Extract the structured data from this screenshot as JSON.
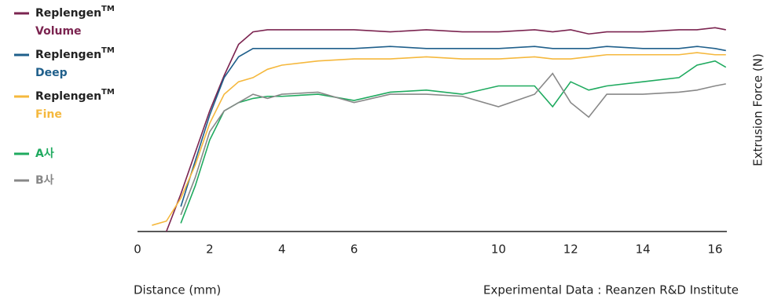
{
  "chart_data": {
    "type": "line",
    "brand": "Replengen",
    "brand_mark": "TM",
    "xlabel": "Distance (mm)",
    "ylabel": "Extrusion Force (N)",
    "note": "Experimental Data : Reanzen R&D Institute",
    "x": [
      0.4,
      0.8,
      1.2,
      1.6,
      2,
      2.4,
      2.8,
      3.2,
      3.6,
      4,
      5,
      6,
      7,
      8,
      9,
      10,
      11,
      11.5,
      12,
      12.5,
      13,
      14,
      15,
      15.5,
      16,
      16.3
    ],
    "xlim": [
      0,
      16.5
    ],
    "xticks": [
      0,
      2,
      4,
      6,
      10,
      12,
      14,
      16
    ],
    "ylim": [
      0,
      100
    ],
    "series": [
      {
        "name": "Volume",
        "branded": true,
        "color": "#7b2450",
        "values": [
          null,
          0,
          18,
          38,
          58,
          75,
          90,
          96,
          97,
          97,
          97,
          97,
          96,
          97,
          96,
          96,
          97,
          96,
          97,
          95,
          96,
          96,
          97,
          97,
          98,
          97
        ]
      },
      {
        "name": "Deep",
        "branded": true,
        "color": "#1f5f8b",
        "values": [
          null,
          null,
          12,
          34,
          56,
          74,
          84,
          88,
          88,
          88,
          88,
          88,
          89,
          88,
          88,
          88,
          89,
          88,
          88,
          88,
          89,
          88,
          88,
          89,
          88,
          87
        ]
      },
      {
        "name": "Fine",
        "branded": true,
        "color": "#f5b83d",
        "values": [
          3,
          5,
          16,
          32,
          52,
          66,
          72,
          74,
          78,
          80,
          82,
          83,
          83,
          84,
          83,
          83,
          84,
          83,
          83,
          84,
          85,
          85,
          85,
          86,
          85,
          85
        ]
      },
      {
        "name": "A사",
        "branded": false,
        "color": "#1faa5f",
        "values": [
          null,
          null,
          4,
          22,
          44,
          58,
          62,
          64,
          65,
          65,
          66,
          63,
          67,
          68,
          66,
          70,
          70,
          60,
          72,
          68,
          70,
          72,
          74,
          80,
          82,
          79
        ]
      },
      {
        "name": "B사",
        "branded": false,
        "color": "#888888",
        "values": [
          null,
          null,
          8,
          26,
          48,
          58,
          62,
          66,
          64,
          66,
          67,
          62,
          66,
          66,
          65,
          60,
          66,
          76,
          62,
          55,
          66,
          66,
          67,
          68,
          70,
          71
        ]
      }
    ]
  }
}
